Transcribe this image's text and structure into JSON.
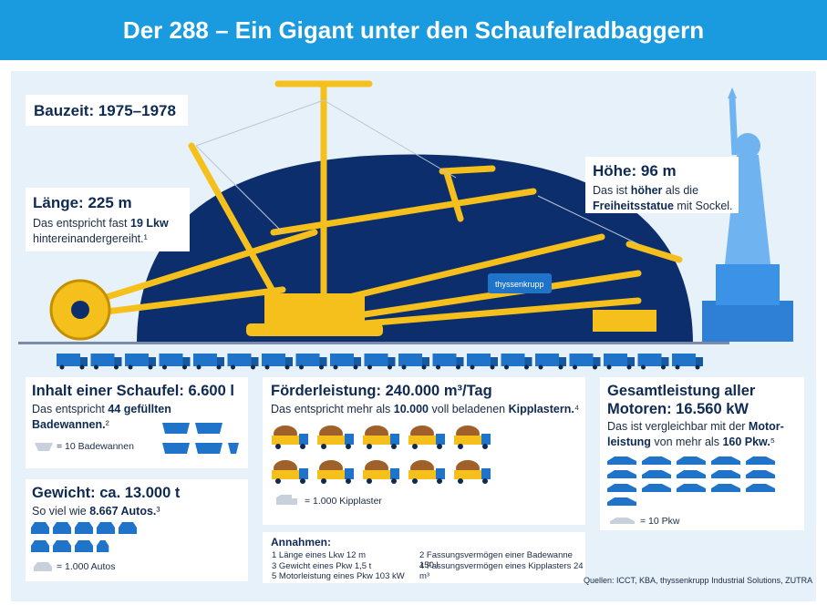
{
  "title": "Der 288 – Ein Gigant unter den Schaufelradbaggern",
  "brand_label": "thyssenkrupp",
  "bauzeit": {
    "label": "Bauzeit: 1975–1978"
  },
  "laenge": {
    "heading": "Länge: 225 m",
    "line1_pre": "Das entspricht fast ",
    "line1_bold": "19 Lkw",
    "line2": "hintereinandergereiht.¹"
  },
  "hoehe": {
    "heading": "Höhe: 96 m",
    "line1_pre": "Das ist ",
    "line1_bold": "höher",
    "line1_post": " als die",
    "line2_bold": "Freiheitsstatue",
    "line2_post": " mit Sockel."
  },
  "schaufel": {
    "heading": "Inhalt einer Schaufel: 6.600 l",
    "line1_pre": "Das entspricht ",
    "line1_bold": "44 gefüllten",
    "line2_bold": "Badewannen.",
    "line2_sup": "²",
    "legend": "= 10 Badewannen"
  },
  "gewicht": {
    "heading": "Gewicht: ca. 13.000 t",
    "line1_pre": "So viel wie ",
    "line1_bold": "8.667 Autos.",
    "line1_sup": "³",
    "legend": "= 1.000 Autos"
  },
  "foerder": {
    "heading": "Förderleistung: 240.000 m³/Tag",
    "line1_pre": "Das entspricht mehr als ",
    "line1_bold": "10.000",
    "line1_mid": " voll beladenen ",
    "line1_bold2": "Kipplastern.",
    "line1_sup": "⁴",
    "legend": "= 1.000 Kipplaster"
  },
  "leistung": {
    "heading1": "Gesamtleistung aller",
    "heading2": "Motoren: 16.560 kW",
    "line1_pre": "Das ist vergleichbar mit der ",
    "line1_bold": "Motor-",
    "line2_bold": "leistung",
    "line2_mid": " von mehr als ",
    "line2_bold2": "160 Pkw.",
    "line2_sup": "⁵",
    "legend": "= 10 Pkw"
  },
  "annahmen": {
    "heading": "Annahmen:",
    "items": [
      "1 Länge eines Lkw 12 m",
      "2 Fassungsvermögen einer Badewanne 150 l",
      "3 Gewicht eines Pkw 1,5 t",
      "4 Fassungsvermögen eines Kipplasters 24 m³",
      "5 Motorleistung eines Pkw 103 kW"
    ]
  },
  "quellen": "Quellen: ICCT, KBA, thyssenkrupp Industrial Solutions, ZUTRA",
  "chart_data": [
    {
      "type": "pictogram",
      "title": "Länge: 225 m",
      "unit_icon": "truck",
      "unit_value": 1,
      "count": 19
    },
    {
      "type": "pictogram",
      "title": "Inhalt einer Schaufel: 6.600 l",
      "unit_icon": "bathtub",
      "unit_value": 10,
      "legend": "= 10 Badewannen",
      "count": 4.4,
      "value": 44
    },
    {
      "type": "pictogram",
      "title": "Gewicht: ca. 13.000 t",
      "unit_icon": "car",
      "unit_value": 1000,
      "legend": "= 1.000 Autos",
      "count": 8.667,
      "value": 8667
    },
    {
      "type": "pictogram",
      "title": "Förderleistung: 240.000 m³/Tag",
      "unit_icon": "dump-truck",
      "unit_value": 1000,
      "legend": "= 1.000 Kipplaster",
      "count": 10,
      "value": 10000
    },
    {
      "type": "pictogram",
      "title": "Gesamtleistung aller Motoren: 16.560 kW",
      "unit_icon": "car",
      "unit_value": 10,
      "legend": "= 10 Pkw",
      "count": 16,
      "value": 160
    }
  ],
  "colors": {
    "header_blue": "#1a9be0",
    "navy": "#0e2a52",
    "dome_navy": "#0d2e6c",
    "excavator_yellow": "#f5c01c",
    "pictogram_blue": "#1f74c9",
    "panel_bg": "#e7f1fa"
  }
}
